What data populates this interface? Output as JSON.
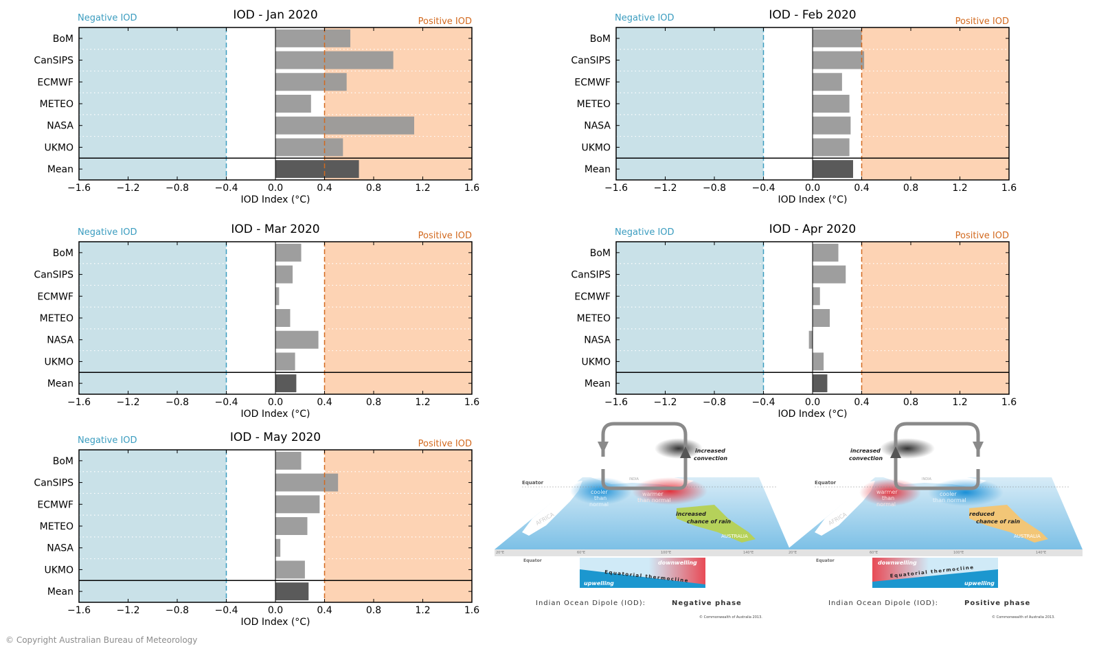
{
  "chart_data": [
    {
      "type": "bar",
      "orientation": "horizontal",
      "title": "IOD - Jan 2020",
      "xlabel": "IOD Index (°C)",
      "categories": [
        "BoM",
        "CanSIPS",
        "ECMWF",
        "METEO",
        "NASA",
        "UKMO",
        "Mean"
      ],
      "values": [
        0.61,
        0.96,
        0.58,
        0.29,
        1.13,
        0.55,
        0.68
      ],
      "xlim": [
        -1.6,
        1.6
      ],
      "xticks": [
        "−1.6",
        "−1.2",
        "−0.8",
        "−0.4",
        "0.0",
        "0.4",
        "0.8",
        "1.2",
        "1.6"
      ],
      "thresholds": [
        -0.4,
        0.4
      ],
      "negative_label": "Negative IOD",
      "positive_label": "Positive IOD"
    },
    {
      "type": "bar",
      "orientation": "horizontal",
      "title": "IOD - Feb 2020",
      "xlabel": "IOD Index (°C)",
      "categories": [
        "BoM",
        "CanSIPS",
        "ECMWF",
        "METEO",
        "NASA",
        "UKMO",
        "Mean"
      ],
      "values": [
        0.4,
        0.42,
        0.24,
        0.3,
        0.31,
        0.3,
        0.33
      ],
      "xlim": [
        -1.6,
        1.6
      ],
      "xticks": [
        "−1.6",
        "−1.2",
        "−0.8",
        "−0.4",
        "0.0",
        "0.4",
        "0.8",
        "1.2",
        "1.6"
      ],
      "thresholds": [
        -0.4,
        0.4
      ],
      "negative_label": "Negative IOD",
      "positive_label": "Positive IOD"
    },
    {
      "type": "bar",
      "orientation": "horizontal",
      "title": "IOD - Mar 2020",
      "xlabel": "IOD Index (°C)",
      "categories": [
        "BoM",
        "CanSIPS",
        "ECMWF",
        "METEO",
        "NASA",
        "UKMO",
        "Mean"
      ],
      "values": [
        0.21,
        0.14,
        0.03,
        0.12,
        0.35,
        0.16,
        0.17
      ],
      "xlim": [
        -1.6,
        1.6
      ],
      "xticks": [
        "−1.6",
        "−1.2",
        "−0.8",
        "−0.4",
        "0.0",
        "0.4",
        "0.8",
        "1.2",
        "1.6"
      ],
      "thresholds": [
        -0.4,
        0.4
      ],
      "negative_label": "Negative IOD",
      "positive_label": "Positive IOD"
    },
    {
      "type": "bar",
      "orientation": "horizontal",
      "title": "IOD - Apr 2020",
      "xlabel": "IOD Index (°C)",
      "categories": [
        "BoM",
        "CanSIPS",
        "ECMWF",
        "METEO",
        "NASA",
        "UKMO",
        "Mean"
      ],
      "values": [
        0.21,
        0.27,
        0.06,
        0.14,
        -0.03,
        0.09,
        0.12
      ],
      "xlim": [
        -1.6,
        1.6
      ],
      "xticks": [
        "−1.6",
        "−1.2",
        "−0.8",
        "−0.4",
        "0.0",
        "0.4",
        "0.8",
        "1.2",
        "1.6"
      ],
      "thresholds": [
        -0.4,
        0.4
      ],
      "negative_label": "Negative IOD",
      "positive_label": "Positive IOD"
    },
    {
      "type": "bar",
      "orientation": "horizontal",
      "title": "IOD - May 2020",
      "xlabel": "IOD Index (°C)",
      "categories": [
        "BoM",
        "CanSIPS",
        "ECMWF",
        "METEO",
        "NASA",
        "UKMO",
        "Mean"
      ],
      "values": [
        0.21,
        0.51,
        0.36,
        0.26,
        0.04,
        0.24,
        0.27
      ],
      "xlim": [
        -1.6,
        1.6
      ],
      "xticks": [
        "−1.6",
        "−1.2",
        "−0.8",
        "−0.4",
        "0.0",
        "0.4",
        "0.8",
        "1.2",
        "1.6"
      ],
      "thresholds": [
        -0.4,
        0.4
      ],
      "negative_label": "Negative IOD",
      "positive_label": "Positive IOD"
    }
  ],
  "colors": {
    "negative_fill": "#c9e1e8",
    "positive_fill": "#fdd3b4",
    "negative_text": "#3a9cbf",
    "positive_text": "#d2691e",
    "bar": "#999999",
    "mean_bar": "#5a5a5a"
  },
  "diagrams": {
    "negative": {
      "caption_prefix": "Indian Ocean Dipole (IOD):",
      "caption_phase": "Negative phase",
      "credit": "© Commonwealth of Australia 2013.",
      "labels": {
        "convection": [
          "increased",
          "convection"
        ],
        "rain": [
          "increased",
          "chance of rain"
        ],
        "west_sst": [
          "cooler",
          "than",
          "normal"
        ],
        "east_sst": [
          "warmer",
          "than normal"
        ],
        "equator": "Equator",
        "africa": "AFRICA",
        "india": "INDIA",
        "australia": "AUSTRALIA",
        "longitudes": [
          "20°E",
          "60°E",
          "100°E",
          "140°E"
        ],
        "section_equator": "Equator",
        "thermocline": "Equatorial thermocline",
        "upwelling": "upwelling",
        "downwelling": "downwelling"
      }
    },
    "positive": {
      "caption_prefix": "Indian Ocean Dipole (IOD):",
      "caption_phase": "Positive phase",
      "credit": "© Commonwealth of Australia 2013.",
      "labels": {
        "convection": [
          "increased",
          "convection"
        ],
        "rain": [
          "reduced",
          "chance of rain"
        ],
        "west_sst": [
          "warmer",
          "than",
          "normal"
        ],
        "east_sst": [
          "cooler",
          "than normal"
        ],
        "equator": "Equator",
        "africa": "AFRICA",
        "india": "INDIA",
        "australia": "AUSTRALIA",
        "longitudes": [
          "20°E",
          "60°E",
          "100°E",
          "140°E"
        ],
        "section_equator": "Equator",
        "thermocline": "Equatorial thermocline",
        "upwelling": "upwelling",
        "downwelling": "downwelling"
      }
    }
  },
  "footer": {
    "copyright": "© Copyright Australian Bureau of Meteorology"
  }
}
